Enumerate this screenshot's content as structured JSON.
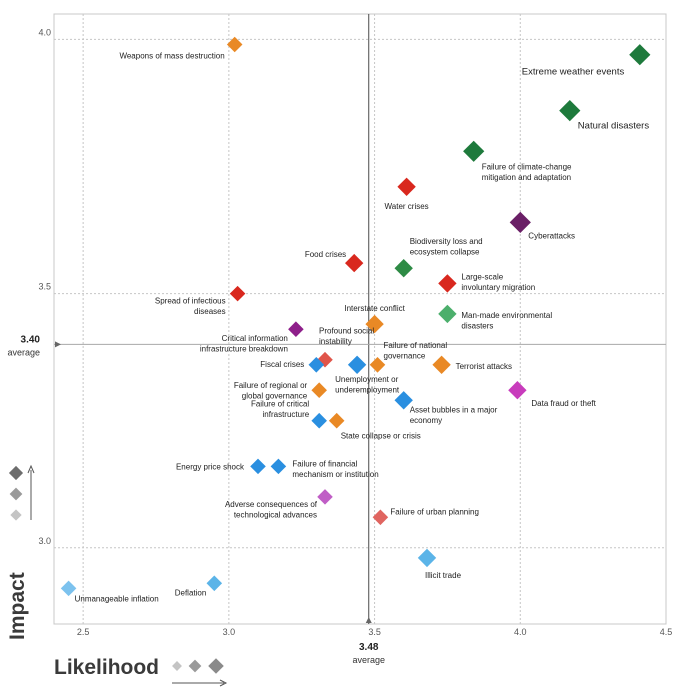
{
  "chart_data": {
    "type": "scatter",
    "title": "",
    "xlabel": "Likelihood",
    "ylabel": "Impact",
    "xlim": [
      2.4,
      4.5
    ],
    "ylim": [
      2.85,
      4.05
    ],
    "x_ticks": [
      "2.5",
      "3.0",
      "3.5",
      "4.0",
      "4.5"
    ],
    "y_ticks": [
      "3.0",
      "3.5",
      "4.0"
    ],
    "grid": true,
    "average": {
      "x": {
        "value": 3.48,
        "value_label": "3.48",
        "label": "average"
      },
      "y": {
        "value": 3.4,
        "value_label": "3.40",
        "label": "average"
      }
    },
    "points": [
      {
        "name": "Extreme weather events",
        "x": 4.41,
        "y": 3.97,
        "color": "#1e7a3c",
        "size": "large"
      },
      {
        "name": "Natural disasters",
        "x": 4.17,
        "y": 3.86,
        "color": "#1e7a3c",
        "size": "large"
      },
      {
        "name": "Failure of climate-change mitigation and adaptation",
        "lines": [
          "Failure of climate-change",
          "mitigation and adaptation"
        ],
        "x": 3.84,
        "y": 3.78,
        "color": "#1e7a3c",
        "size": "large"
      },
      {
        "name": "Weapons of mass destruction",
        "x": 3.02,
        "y": 3.99,
        "color": "#e98925",
        "size": "small"
      },
      {
        "name": "Water crises",
        "x": 3.61,
        "y": 3.71,
        "color": "#d9281e",
        "size": "medium"
      },
      {
        "name": "Cyberattacks",
        "x": 4.0,
        "y": 3.64,
        "color": "#6a1f66",
        "size": "large"
      },
      {
        "name": "Biodiversity loss and ecosystem collapse",
        "lines": [
          "Biodiversity loss and",
          "ecosystem collapse"
        ],
        "x": 3.6,
        "y": 3.55,
        "color": "#2e8b45",
        "size": "medium"
      },
      {
        "name": "Food crises",
        "x": 3.43,
        "y": 3.56,
        "color": "#d9281e",
        "size": "medium"
      },
      {
        "name": "Large-scale involuntary migration",
        "lines": [
          "Large-scale",
          "involuntary migration"
        ],
        "x": 3.75,
        "y": 3.52,
        "color": "#d9281e",
        "size": "medium"
      },
      {
        "name": "Spread of infectious diseases",
        "lines": [
          "Spread of infectious",
          "diseases"
        ],
        "x": 3.03,
        "y": 3.5,
        "color": "#d9281e",
        "size": "small"
      },
      {
        "name": "Man-made environmental disasters",
        "lines": [
          "Man-made environmental",
          "disasters"
        ],
        "x": 3.75,
        "y": 3.46,
        "color": "#4caf6c",
        "size": "medium"
      },
      {
        "name": "Interstate conflict",
        "x": 3.5,
        "y": 3.44,
        "color": "#e98925",
        "size": "medium"
      },
      {
        "name": "Critical information infrastructure breakdown",
        "lines": [
          "Critical information",
          "infrastructure breakdown"
        ],
        "x": 3.23,
        "y": 3.43,
        "color": "#8e1f8a",
        "size": "small"
      },
      {
        "name": "Profound social instability",
        "lines": [
          "Profound social",
          "instability"
        ],
        "x": 3.33,
        "y": 3.37,
        "color": "#e0554a",
        "size": "small"
      },
      {
        "name": "Failure of national governance",
        "lines": [
          "Failure of national",
          "governance"
        ],
        "x": 3.51,
        "y": 3.36,
        "color": "#e98925",
        "size": "small"
      },
      {
        "name": "Terrorist attacks",
        "x": 3.73,
        "y": 3.36,
        "color": "#e98925",
        "size": "medium"
      },
      {
        "name": "Fiscal crises",
        "x": 3.3,
        "y": 3.36,
        "color": "#2a8fe0",
        "size": "small"
      },
      {
        "name": "Unemployment or underemployment",
        "lines": [
          "Unemployment or",
          "underemployment"
        ],
        "x": 3.44,
        "y": 3.36,
        "color": "#2a8fe0",
        "size": "medium"
      },
      {
        "name": "Data fraud or theft",
        "x": 3.99,
        "y": 3.31,
        "color": "#c83cbc",
        "size": "medium"
      },
      {
        "name": "Failure of regional or global governance",
        "lines": [
          "Failure of regional or",
          "global governance"
        ],
        "x": 3.31,
        "y": 3.31,
        "color": "#e98925",
        "size": "small"
      },
      {
        "name": "Asset bubbles in a major economy",
        "lines": [
          "Asset bubbles in a major",
          "economy"
        ],
        "x": 3.6,
        "y": 3.29,
        "color": "#2a8fe0",
        "size": "medium"
      },
      {
        "name": "Failure of critical infrastructure",
        "lines": [
          "Failure of critical",
          "infrastructure"
        ],
        "x": 3.31,
        "y": 3.25,
        "color": "#2a8fe0",
        "size": "small"
      },
      {
        "name": "State collapse or crisis",
        "x": 3.37,
        "y": 3.25,
        "color": "#e98925",
        "size": "small"
      },
      {
        "name": "Energy price shock",
        "x": 3.1,
        "y": 3.16,
        "color": "#2a8fe0",
        "size": "small"
      },
      {
        "name": "Failure of financial mechanism or institution",
        "lines": [
          "Failure of financial",
          "mechanism or institution"
        ],
        "x": 3.17,
        "y": 3.16,
        "color": "#2a8fe0",
        "size": "small"
      },
      {
        "name": "Adverse consequences of technological advances",
        "lines": [
          "Adverse consequences of",
          "technological advances"
        ],
        "x": 3.33,
        "y": 3.1,
        "color": "#c05ec6",
        "size": "small"
      },
      {
        "name": "Failure of urban planning",
        "x": 3.52,
        "y": 3.06,
        "color": "#e06560",
        "size": "small"
      },
      {
        "name": "Illicit trade",
        "x": 3.68,
        "y": 2.98,
        "color": "#5bb4e8",
        "size": "medium"
      },
      {
        "name": "Deflation",
        "x": 2.95,
        "y": 2.93,
        "color": "#5bb4e8",
        "size": "small"
      },
      {
        "name": "Unmanageable inflation",
        "x": 2.45,
        "y": 2.92,
        "color": "#7cc2ee",
        "size": "small"
      }
    ]
  }
}
